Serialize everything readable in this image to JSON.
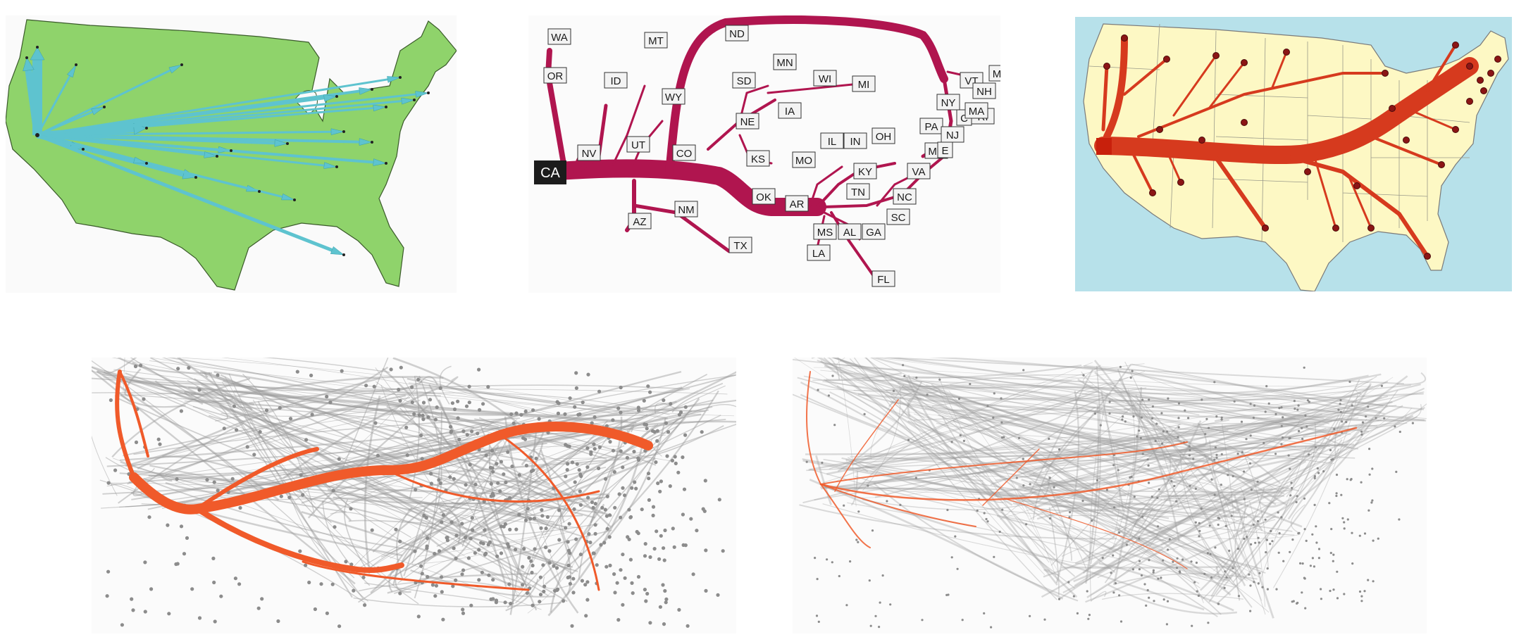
{
  "colors": {
    "land_green": "#8fd36b",
    "arrow_cyan": "#5ec3cf",
    "flow_crimson": "#b0154f",
    "flow_red": "#d63a1e",
    "land_cream": "#fdf8c4",
    "ocean_blue": "#b7e1ea",
    "bundle_orange": "#f05a2a",
    "edge_gray": "#9a9a9a"
  },
  "panels": {
    "top_left": {
      "icon": "us-map-cyan-arrows"
    },
    "top_middle": {
      "icon": "labeled-flow-tree",
      "source_label": "CA",
      "state_labels": {
        "WA": "WA",
        "OR": "OR",
        "MT": "MT",
        "ID": "ID",
        "WY": "WY",
        "NV": "NV",
        "UT": "UT",
        "CO": "CO",
        "ND": "ND",
        "SD": "SD",
        "MN": "MN",
        "WI": "WI",
        "MI": "MI",
        "NE": "NE",
        "IA": "IA",
        "KS": "KS",
        "MO": "MO",
        "IL": "IL",
        "IN": "IN",
        "OH": "OH",
        "KY": "KY",
        "TN": "TN",
        "OK": "OK",
        "AR": "AR",
        "AZ": "AZ",
        "NM": "NM",
        "TX": "TX",
        "MS": "MS",
        "AL": "AL",
        "GA": "GA",
        "LA": "LA",
        "FL": "FL",
        "SC": "SC",
        "NC": "NC",
        "VA": "VA",
        "MD": "MD",
        "DE": "E",
        "PA": "PA",
        "NJ": "NJ",
        "NY": "NY",
        "CT": "C",
        "RI": "RI",
        "MA": "MA",
        "VT": "VT",
        "NH": "NH",
        "ME": "ME"
      }
    },
    "top_right": {
      "icon": "us-map-flow-tree"
    },
    "bottom_left": {
      "icon": "edge-bundled-network-orange-flows"
    },
    "bottom_right": {
      "icon": "edge-bundled-network-thin-flows"
    }
  }
}
